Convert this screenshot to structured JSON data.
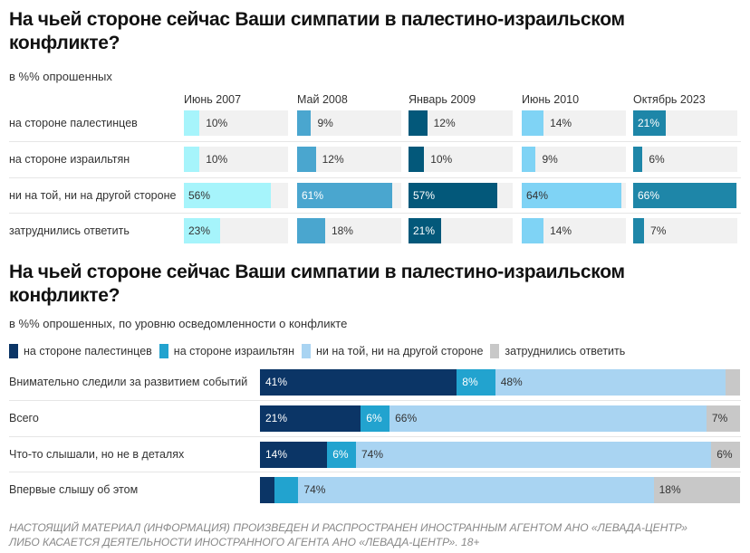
{
  "chart_data": [
    {
      "type": "bar",
      "title": "На чьей стороне сейчас Ваши симпатии в палестино-израильском конфликте?",
      "subtitle": "в %% опрошенных",
      "categories": [
        "на стороне палестинцев",
        "на стороне израильтян",
        "ни на той, ни на другой стороне",
        "затруднились ответить"
      ],
      "series": [
        {
          "name": "Июнь 2007",
          "color": "#a6f4fb",
          "text": "#333",
          "values": [
            10,
            10,
            56,
            23
          ]
        },
        {
          "name": "Май 2008",
          "color": "#4aa6cf",
          "text": "#fff",
          "values": [
            9,
            12,
            61,
            18
          ]
        },
        {
          "name": "Январь 2009",
          "color": "#03587a",
          "text": "#fff",
          "values": [
            12,
            10,
            57,
            21
          ]
        },
        {
          "name": "Июнь 2010",
          "color": "#7fd3f5",
          "text": "#333",
          "values": [
            14,
            9,
            64,
            14
          ]
        },
        {
          "name": "Октябрь 2023",
          "color": "#1e86a8",
          "text": "#fff",
          "values": [
            21,
            6,
            66,
            7
          ]
        }
      ],
      "unit": "%"
    },
    {
      "type": "bar",
      "stacked": true,
      "title": "На чьей стороне сейчас Ваши симпатии в палестино-израильском конфликте?",
      "subtitle": "в %% опрошенных, по уровню осведомленности о конфликте",
      "legend": [
        "на стороне палестинцев",
        "на стороне израильтян",
        "ни на той, ни на другой стороне",
        "затруднились ответить"
      ],
      "colors": [
        "#0b3566",
        "#22a3cf",
        "#a9d4f2",
        "#c8c8c8"
      ],
      "text_colors": [
        "#fff",
        "#fff",
        "#333",
        "#333"
      ],
      "categories": [
        "Внимательно следили за развитием событий",
        "Всего",
        "Что-то слышали, но не в деталях",
        "Впервые слышу об этом"
      ],
      "values": [
        [
          41,
          8,
          48,
          3
        ],
        [
          21,
          6,
          66,
          7
        ],
        [
          14,
          6,
          74,
          6
        ],
        [
          3,
          5,
          74,
          18
        ]
      ],
      "labels": [
        [
          "41%",
          "8%",
          "48%",
          null
        ],
        [
          "21%",
          "6%",
          "66%",
          "7%"
        ],
        [
          "14%",
          "6%",
          "74%",
          "6%"
        ],
        [
          null,
          null,
          "74%",
          "18%"
        ]
      ],
      "xlim": [
        0,
        100
      ]
    }
  ],
  "footer": [
    "НАСТОЯЩИЙ МАТЕРИАЛ (ИНФОРМАЦИЯ) ПРОИЗВЕДЕН И РАСПРОСТРАНЕН ИНОСТРАННЫМ АГЕНТОМ АНО «ЛЕВАДА-ЦЕНТР»",
    "ЛИБО КАСАЕТСЯ ДЕЯТЕЛЬНОСТИ ИНОСТРАННОГО АГЕНТА АНО «ЛЕВАДА-ЦЕНТР». 18+"
  ]
}
